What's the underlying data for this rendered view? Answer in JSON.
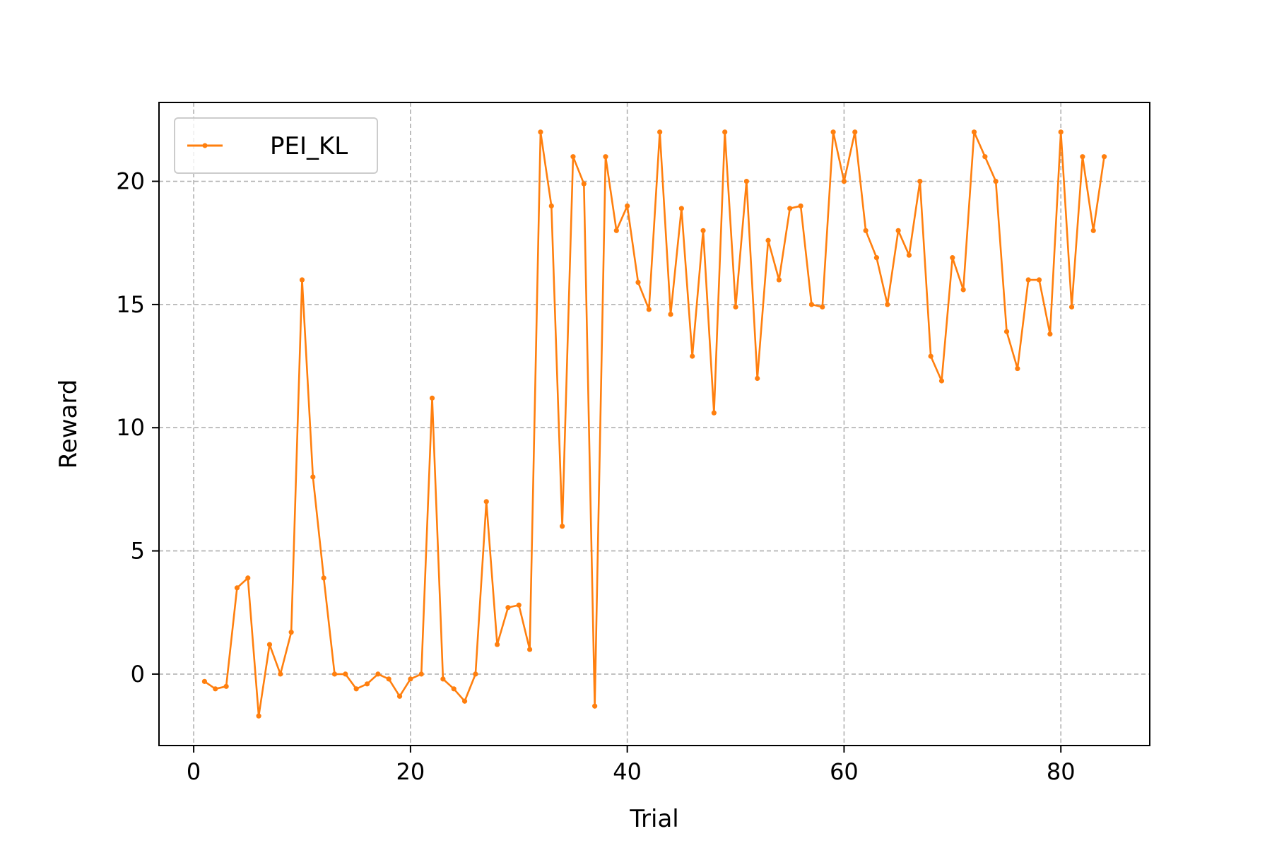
{
  "chart_data": {
    "type": "line",
    "title": "",
    "xlabel": "Trial",
    "ylabel": "Reward",
    "xlim": [
      -3.2,
      88.2
    ],
    "ylim": [
      -2.9,
      23.2
    ],
    "xticks": [
      0,
      20,
      40,
      60,
      80
    ],
    "yticks": [
      0,
      5,
      10,
      15,
      20
    ],
    "grid": true,
    "legend_position": "top-left",
    "colors": {
      "series": "#ff7f0e",
      "grid": "#b0b0b0",
      "axis": "#000000"
    },
    "series": [
      {
        "name": "PEI_KL",
        "x": [
          1,
          2,
          3,
          4,
          5,
          6,
          7,
          8,
          9,
          10,
          11,
          12,
          13,
          14,
          15,
          16,
          17,
          18,
          19,
          20,
          21,
          22,
          23,
          24,
          25,
          26,
          27,
          28,
          29,
          30,
          31,
          32,
          33,
          34,
          35,
          36,
          37,
          38,
          39,
          40,
          41,
          42,
          43,
          44,
          45,
          46,
          47,
          48,
          49,
          50,
          51,
          52,
          53,
          54,
          55,
          56,
          57,
          58,
          59,
          60,
          61,
          62,
          63,
          64,
          65,
          66,
          67,
          68,
          69,
          70,
          71,
          72,
          73,
          74,
          75,
          76,
          77,
          78,
          79,
          80,
          81,
          82,
          83,
          84
        ],
        "values": [
          -0.3,
          -0.6,
          -0.5,
          3.5,
          3.9,
          -1.7,
          1.2,
          0.0,
          1.7,
          16.0,
          8.0,
          3.9,
          0.0,
          0.0,
          -0.6,
          -0.4,
          0.0,
          -0.2,
          -0.9,
          -0.2,
          0.0,
          11.2,
          -0.2,
          -0.6,
          -1.1,
          0.0,
          7.0,
          1.2,
          2.7,
          2.8,
          1.0,
          22.0,
          19.0,
          6.0,
          21.0,
          19.9,
          -1.3,
          21.0,
          18.0,
          19.0,
          15.9,
          14.8,
          22.0,
          14.6,
          18.9,
          12.9,
          18.0,
          10.6,
          22.0,
          14.9,
          20.0,
          12.0,
          17.6,
          16.0,
          18.9,
          19.0,
          15.0,
          14.9,
          22.0,
          20.0,
          22.0,
          18.0,
          16.9,
          15.0,
          18.0,
          17.0,
          20.0,
          12.9,
          11.9,
          16.9,
          15.6,
          22.0,
          21.0,
          20.0,
          13.9,
          12.4,
          16.0,
          16.0,
          13.8,
          22.0,
          14.9,
          21.0,
          18.0,
          21.0
        ]
      }
    ]
  }
}
